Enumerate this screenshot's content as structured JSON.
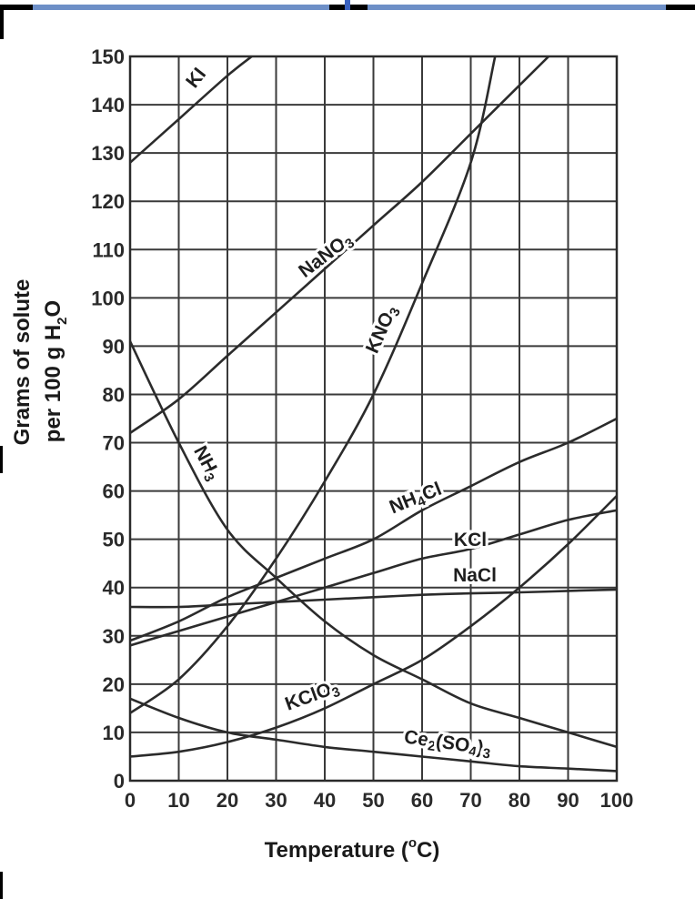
{
  "window": {
    "accent_color": "#6d8fc7",
    "frame_color": "#000000"
  },
  "chart_data": {
    "type": "line",
    "title": "",
    "xlabel_parts": [
      "Temperature (",
      "o",
      "C)"
    ],
    "ylabel_line1": "Grams of solute",
    "ylabel_line2_parts": [
      "per 100 g H",
      "2",
      "O"
    ],
    "xlim": [
      0,
      100
    ],
    "ylim": [
      0,
      150
    ],
    "xticks": [
      "0",
      "10",
      "20",
      "30",
      "40",
      "50",
      "60",
      "70",
      "80",
      "90",
      "100"
    ],
    "yticks": [
      "0",
      "10",
      "20",
      "30",
      "40",
      "50",
      "60",
      "70",
      "80",
      "90",
      "100",
      "110",
      "120",
      "130",
      "140",
      "150"
    ],
    "grid": true,
    "series": [
      {
        "name": "KI",
        "label_parts": [
          "KI"
        ],
        "x": [
          0,
          10,
          20,
          25
        ],
        "y": [
          128,
          137,
          146,
          150
        ]
      },
      {
        "name": "NaNO3",
        "label_parts": [
          "NaNO",
          "3"
        ],
        "x": [
          0,
          10,
          20,
          30,
          40,
          50,
          60,
          70,
          80,
          86
        ],
        "y": [
          72,
          79,
          88,
          97,
          106,
          115,
          124,
          134,
          144,
          150
        ]
      },
      {
        "name": "KNO3",
        "label_parts": [
          "KNO",
          "3"
        ],
        "x": [
          0,
          10,
          20,
          30,
          40,
          50,
          60,
          70,
          75
        ],
        "y": [
          14,
          21,
          32,
          46,
          62,
          80,
          103,
          128,
          150
        ]
      },
      {
        "name": "NH3",
        "label_parts": [
          "NH",
          "3"
        ],
        "x": [
          0,
          10,
          20,
          30,
          40,
          50,
          60,
          70,
          80,
          90,
          100
        ],
        "y": [
          91,
          70,
          52,
          42,
          33,
          26,
          21,
          16,
          13,
          10,
          7
        ]
      },
      {
        "name": "NH4Cl",
        "label_parts": [
          "NH",
          "4",
          "Cl"
        ],
        "x": [
          0,
          10,
          20,
          30,
          40,
          50,
          60,
          70,
          80,
          90,
          100
        ],
        "y": [
          29,
          33,
          38,
          42,
          46,
          50,
          56,
          61,
          66,
          70,
          75
        ]
      },
      {
        "name": "KCl",
        "label_parts": [
          "KCl"
        ],
        "x": [
          0,
          10,
          20,
          30,
          40,
          50,
          60,
          70,
          80,
          90,
          100
        ],
        "y": [
          28,
          31,
          34,
          37,
          40,
          43,
          46,
          48,
          51,
          54,
          56
        ]
      },
      {
        "name": "NaCl",
        "label_parts": [
          "NaCl"
        ],
        "x": [
          0,
          10,
          20,
          30,
          40,
          50,
          60,
          70,
          80,
          90,
          100
        ],
        "y": [
          36,
          36,
          36.5,
          37,
          37.5,
          38,
          38.5,
          38.8,
          39,
          39.3,
          39.6
        ]
      },
      {
        "name": "KClO3",
        "label_parts": [
          "KClO",
          "3"
        ],
        "x": [
          0,
          10,
          20,
          30,
          40,
          50,
          60,
          70,
          80,
          90,
          100
        ],
        "y": [
          5,
          6,
          8,
          11,
          15,
          20,
          25,
          32,
          40,
          49,
          59
        ]
      },
      {
        "name": "Ce2(SO4)3",
        "label_parts": [
          "Ce",
          "2",
          "(SO",
          "4",
          ")",
          "3"
        ],
        "x": [
          0,
          10,
          20,
          30,
          40,
          50,
          60,
          70,
          80,
          90,
          100
        ],
        "y": [
          17,
          13,
          10,
          8.5,
          7,
          6,
          5,
          4,
          3,
          2.5,
          2
        ]
      }
    ]
  }
}
